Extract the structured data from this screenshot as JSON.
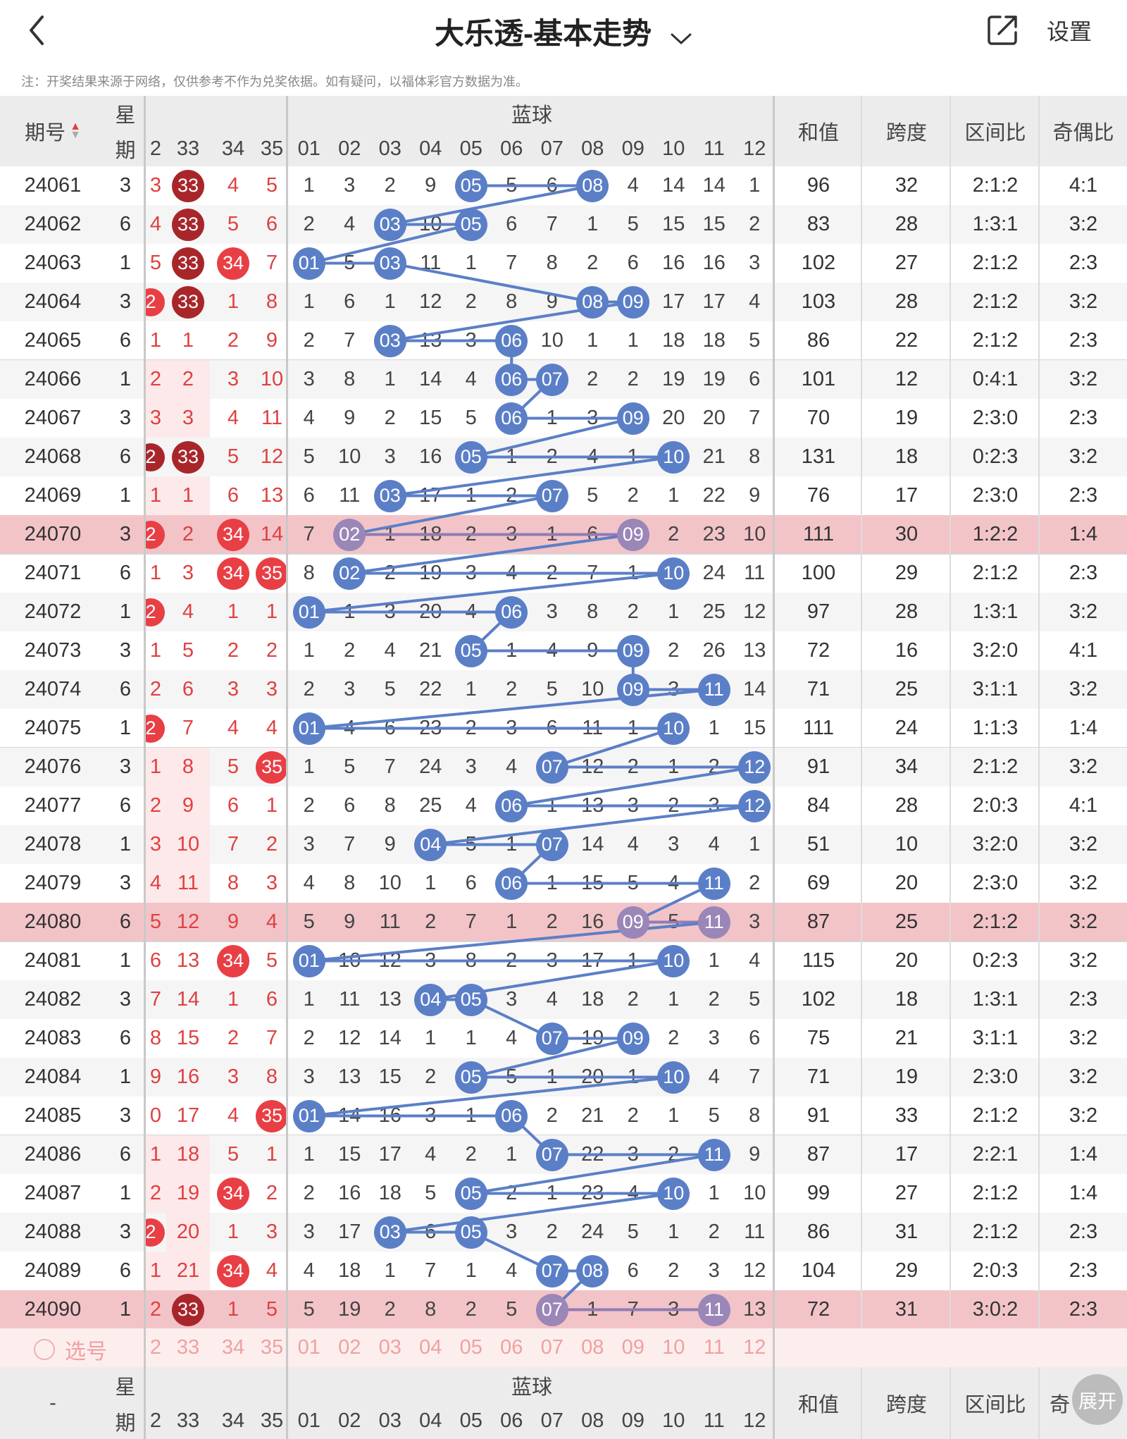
{
  "header": {
    "title": "大乐透-基本走势",
    "settings_label": "设置"
  },
  "notice": "注：开奖结果来源于网络，仅供参考不作为兑奖依据。如有疑问，以福体彩官方数据为准。",
  "table_header": {
    "issue": "期号",
    "weekday_top": "星",
    "weekday_bottom": "期",
    "blue_group": "蓝球",
    "sum": "和值",
    "span": "跨度",
    "zone_ratio": "区间比",
    "odd_even": "奇偶比",
    "red_columns": [
      "2",
      "33",
      "34",
      "35"
    ],
    "blue_columns": [
      "01",
      "02",
      "03",
      "04",
      "05",
      "06",
      "07",
      "08",
      "09",
      "10",
      "11",
      "12"
    ]
  },
  "rows": [
    {
      "issue": "24061",
      "weekday": "3",
      "red": [
        "3",
        "33",
        "4",
        "5"
      ],
      "blue": [
        "1",
        "3",
        "2",
        "9",
        "05",
        "5",
        "6",
        "08",
        "4",
        "14",
        "14",
        "1"
      ],
      "sum": "96",
      "span": "32",
      "zone": "2:1:2",
      "oe": "4:1"
    },
    {
      "issue": "24062",
      "weekday": "6",
      "red": [
        "4",
        "33",
        "5",
        "6"
      ],
      "blue": [
        "2",
        "4",
        "03",
        "10",
        "05",
        "6",
        "7",
        "1",
        "5",
        "15",
        "15",
        "2"
      ],
      "sum": "83",
      "span": "28",
      "zone": "1:3:1",
      "oe": "3:2"
    },
    {
      "issue": "24063",
      "weekday": "1",
      "red": [
        "5",
        "33",
        "34",
        "7"
      ],
      "blue": [
        "01",
        "5",
        "03",
        "11",
        "1",
        "7",
        "8",
        "2",
        "6",
        "16",
        "16",
        "3"
      ],
      "sum": "102",
      "span": "27",
      "zone": "2:1:2",
      "oe": "2:3"
    },
    {
      "issue": "24064",
      "weekday": "3",
      "red": [
        "2",
        "33",
        "1",
        "8"
      ],
      "blue": [
        "1",
        "6",
        "1",
        "12",
        "2",
        "8",
        "9",
        "08",
        "09",
        "17",
        "17",
        "4"
      ],
      "sum": "103",
      "span": "28",
      "zone": "2:1:2",
      "oe": "3:2"
    },
    {
      "issue": "24065",
      "weekday": "6",
      "red": [
        "1",
        "1",
        "2",
        "9"
      ],
      "blue": [
        "2",
        "7",
        "03",
        "13",
        "3",
        "06",
        "10",
        "1",
        "1",
        "18",
        "18",
        "5"
      ],
      "sum": "86",
      "span": "22",
      "zone": "2:1:2",
      "oe": "2:3"
    },
    {
      "issue": "24066",
      "weekday": "1",
      "red": [
        "2",
        "2",
        "3",
        "10"
      ],
      "blue": [
        "3",
        "8",
        "1",
        "14",
        "4",
        "06",
        "07",
        "2",
        "2",
        "19",
        "19",
        "6"
      ],
      "sum": "101",
      "span": "12",
      "zone": "0:4:1",
      "oe": "3:2"
    },
    {
      "issue": "24067",
      "weekday": "3",
      "red": [
        "3",
        "3",
        "4",
        "11"
      ],
      "blue": [
        "4",
        "9",
        "2",
        "15",
        "5",
        "06",
        "1",
        "3",
        "09",
        "20",
        "20",
        "7"
      ],
      "sum": "70",
      "span": "19",
      "zone": "2:3:0",
      "oe": "2:3"
    },
    {
      "issue": "24068",
      "weekday": "6",
      "red": [
        "2",
        "33",
        "5",
        "12"
      ],
      "blue": [
        "5",
        "10",
        "3",
        "16",
        "05",
        "1",
        "2",
        "4",
        "1",
        "10",
        "21",
        "8"
      ],
      "sum": "131",
      "span": "18",
      "zone": "0:2:3",
      "oe": "3:2"
    },
    {
      "issue": "24069",
      "weekday": "1",
      "red": [
        "1",
        "1",
        "6",
        "13"
      ],
      "blue": [
        "6",
        "11",
        "03",
        "17",
        "1",
        "2",
        "07",
        "5",
        "2",
        "1",
        "22",
        "9"
      ],
      "sum": "76",
      "span": "17",
      "zone": "2:3:0",
      "oe": "2:3"
    },
    {
      "issue": "24070",
      "weekday": "3",
      "red": [
        "2",
        "2",
        "34",
        "14"
      ],
      "blue": [
        "7",
        "02",
        "1",
        "18",
        "2",
        "3",
        "1",
        "6",
        "09",
        "2",
        "23",
        "10"
      ],
      "sum": "111",
      "span": "30",
      "zone": "1:2:2",
      "oe": "1:4",
      "highlight": true
    },
    {
      "issue": "24071",
      "weekday": "6",
      "red": [
        "1",
        "3",
        "34",
        "35"
      ],
      "blue": [
        "8",
        "02",
        "2",
        "19",
        "3",
        "4",
        "2",
        "7",
        "1",
        "10",
        "24",
        "11"
      ],
      "sum": "100",
      "span": "29",
      "zone": "2:1:2",
      "oe": "2:3"
    },
    {
      "issue": "24072",
      "weekday": "1",
      "red": [
        "2",
        "4",
        "1",
        "1"
      ],
      "blue": [
        "01",
        "1",
        "3",
        "20",
        "4",
        "06",
        "3",
        "8",
        "2",
        "1",
        "25",
        "12"
      ],
      "sum": "97",
      "span": "28",
      "zone": "1:3:1",
      "oe": "3:2"
    },
    {
      "issue": "24073",
      "weekday": "3",
      "red": [
        "1",
        "5",
        "2",
        "2"
      ],
      "blue": [
        "1",
        "2",
        "4",
        "21",
        "05",
        "1",
        "4",
        "9",
        "09",
        "2",
        "26",
        "13"
      ],
      "sum": "72",
      "span": "16",
      "zone": "3:2:0",
      "oe": "4:1"
    },
    {
      "issue": "24074",
      "weekday": "6",
      "red": [
        "2",
        "6",
        "3",
        "3"
      ],
      "blue": [
        "2",
        "3",
        "5",
        "22",
        "1",
        "2",
        "5",
        "10",
        "09",
        "3",
        "11",
        "14"
      ],
      "sum": "71",
      "span": "25",
      "zone": "3:1:1",
      "oe": "3:2"
    },
    {
      "issue": "24075",
      "weekday": "1",
      "red": [
        "2",
        "7",
        "4",
        "4"
      ],
      "blue": [
        "01",
        "4",
        "6",
        "23",
        "2",
        "3",
        "6",
        "11",
        "1",
        "10",
        "1",
        "15"
      ],
      "sum": "111",
      "span": "24",
      "zone": "1:1:3",
      "oe": "1:4"
    },
    {
      "issue": "24076",
      "weekday": "3",
      "red": [
        "1",
        "8",
        "5",
        "35"
      ],
      "blue": [
        "1",
        "5",
        "7",
        "24",
        "3",
        "4",
        "07",
        "12",
        "2",
        "1",
        "2",
        "12"
      ],
      "sum": "91",
      "span": "34",
      "zone": "2:1:2",
      "oe": "3:2"
    },
    {
      "issue": "24077",
      "weekday": "6",
      "red": [
        "2",
        "9",
        "6",
        "1"
      ],
      "blue": [
        "2",
        "6",
        "8",
        "25",
        "4",
        "06",
        "1",
        "13",
        "3",
        "2",
        "3",
        "12"
      ],
      "sum": "84",
      "span": "28",
      "zone": "2:0:3",
      "oe": "4:1"
    },
    {
      "issue": "24078",
      "weekday": "1",
      "red": [
        "3",
        "10",
        "7",
        "2"
      ],
      "blue": [
        "3",
        "7",
        "9",
        "04",
        "5",
        "1",
        "07",
        "14",
        "4",
        "3",
        "4",
        "1"
      ],
      "sum": "51",
      "span": "10",
      "zone": "3:2:0",
      "oe": "3:2"
    },
    {
      "issue": "24079",
      "weekday": "3",
      "red": [
        "4",
        "11",
        "8",
        "3"
      ],
      "blue": [
        "4",
        "8",
        "10",
        "1",
        "6",
        "06",
        "1",
        "15",
        "5",
        "4",
        "11",
        "2"
      ],
      "sum": "69",
      "span": "20",
      "zone": "2:3:0",
      "oe": "3:2"
    },
    {
      "issue": "24080",
      "weekday": "6",
      "red": [
        "5",
        "12",
        "9",
        "4"
      ],
      "blue": [
        "5",
        "9",
        "11",
        "2",
        "7",
        "1",
        "2",
        "16",
        "09",
        "5",
        "11",
        "3"
      ],
      "sum": "87",
      "span": "25",
      "zone": "2:1:2",
      "oe": "3:2",
      "highlight": true
    },
    {
      "issue": "24081",
      "weekday": "1",
      "red": [
        "6",
        "13",
        "34",
        "5"
      ],
      "blue": [
        "01",
        "10",
        "12",
        "3",
        "8",
        "2",
        "3",
        "17",
        "1",
        "10",
        "1",
        "4"
      ],
      "sum": "115",
      "span": "20",
      "zone": "0:2:3",
      "oe": "3:2"
    },
    {
      "issue": "24082",
      "weekday": "3",
      "red": [
        "7",
        "14",
        "1",
        "6"
      ],
      "blue": [
        "1",
        "11",
        "13",
        "04",
        "05",
        "3",
        "4",
        "18",
        "2",
        "1",
        "2",
        "5"
      ],
      "sum": "102",
      "span": "18",
      "zone": "1:3:1",
      "oe": "2:3"
    },
    {
      "issue": "24083",
      "weekday": "6",
      "red": [
        "8",
        "15",
        "2",
        "7"
      ],
      "blue": [
        "2",
        "12",
        "14",
        "1",
        "1",
        "4",
        "07",
        "19",
        "09",
        "2",
        "3",
        "6"
      ],
      "sum": "75",
      "span": "21",
      "zone": "3:1:1",
      "oe": "3:2"
    },
    {
      "issue": "24084",
      "weekday": "1",
      "red": [
        "9",
        "16",
        "3",
        "8"
      ],
      "blue": [
        "3",
        "13",
        "15",
        "2",
        "05",
        "5",
        "1",
        "20",
        "1",
        "10",
        "4",
        "7"
      ],
      "sum": "71",
      "span": "19",
      "zone": "2:3:0",
      "oe": "3:2"
    },
    {
      "issue": "24085",
      "weekday": "3",
      "red": [
        "0",
        "17",
        "4",
        "35"
      ],
      "blue": [
        "01",
        "14",
        "16",
        "3",
        "1",
        "06",
        "2",
        "21",
        "2",
        "1",
        "5",
        "8"
      ],
      "sum": "91",
      "span": "33",
      "zone": "2:1:2",
      "oe": "3:2"
    },
    {
      "issue": "24086",
      "weekday": "6",
      "red": [
        "1",
        "18",
        "5",
        "1"
      ],
      "blue": [
        "1",
        "15",
        "17",
        "4",
        "2",
        "1",
        "07",
        "22",
        "3",
        "2",
        "11",
        "9"
      ],
      "sum": "87",
      "span": "17",
      "zone": "2:2:1",
      "oe": "1:4"
    },
    {
      "issue": "24087",
      "weekday": "1",
      "red": [
        "2",
        "19",
        "34",
        "2"
      ],
      "blue": [
        "2",
        "16",
        "18",
        "5",
        "05",
        "2",
        "1",
        "23",
        "4",
        "10",
        "1",
        "10"
      ],
      "sum": "99",
      "span": "27",
      "zone": "2:1:2",
      "oe": "1:4"
    },
    {
      "issue": "24088",
      "weekday": "3",
      "red": [
        "2",
        "20",
        "1",
        "3"
      ],
      "blue": [
        "3",
        "17",
        "03",
        "6",
        "05",
        "3",
        "2",
        "24",
        "5",
        "1",
        "2",
        "11"
      ],
      "sum": "86",
      "span": "31",
      "zone": "2:1:2",
      "oe": "2:3"
    },
    {
      "issue": "24089",
      "weekday": "6",
      "red": [
        "1",
        "21",
        "34",
        "4"
      ],
      "blue": [
        "4",
        "18",
        "1",
        "7",
        "1",
        "4",
        "07",
        "08",
        "6",
        "2",
        "3",
        "12"
      ],
      "sum": "104",
      "span": "29",
      "zone": "2:0:3",
      "oe": "2:3"
    },
    {
      "issue": "24090",
      "weekday": "1",
      "red": [
        "2",
        "33",
        "1",
        "5"
      ],
      "blue": [
        "5",
        "19",
        "2",
        "8",
        "2",
        "5",
        "07",
        "1",
        "7",
        "3",
        "11",
        "13"
      ],
      "sum": "72",
      "span": "31",
      "zone": "3:0:2",
      "oe": "2:3",
      "highlight": true
    }
  ],
  "blue_hits": [
    [
      5,
      8
    ],
    [
      3,
      5
    ],
    [
      1,
      3
    ],
    [
      8,
      9
    ],
    [
      3,
      6
    ],
    [
      6,
      7
    ],
    [
      6,
      9
    ],
    [
      5,
      10
    ],
    [
      3,
      7
    ],
    [
      2,
      9
    ],
    [
      2,
      10
    ],
    [
      1,
      6
    ],
    [
      5,
      9
    ],
    [
      9,
      11
    ],
    [
      1,
      10
    ],
    [
      7,
      12
    ],
    [
      6,
      12
    ],
    [
      4,
      7
    ],
    [
      6,
      11
    ],
    [
      9,
      11
    ],
    [
      1,
      10
    ],
    [
      4,
      5
    ],
    [
      7,
      9
    ],
    [
      5,
      10
    ],
    [
      1,
      6
    ],
    [
      7,
      11
    ],
    [
      5,
      10
    ],
    [
      3,
      5
    ],
    [
      7,
      8
    ],
    [
      7,
      11
    ]
  ],
  "red_balls": [
    [
      [
        1,
        "dr"
      ]
    ],
    [
      [
        1,
        "dr"
      ]
    ],
    [
      [
        1,
        "dr"
      ],
      [
        2,
        "r"
      ]
    ],
    [
      [
        0,
        "r"
      ],
      [
        1,
        "dr"
      ]
    ],
    [],
    [],
    [],
    [
      [
        0,
        "dr"
      ],
      [
        1,
        "dr"
      ]
    ],
    [],
    [
      [
        0,
        "r"
      ],
      [
        2,
        "r"
      ]
    ],
    [
      [
        2,
        "r"
      ],
      [
        3,
        "r"
      ]
    ],
    [
      [
        0,
        "r"
      ]
    ],
    [],
    [],
    [
      [
        0,
        "r"
      ]
    ],
    [
      [
        3,
        "r"
      ]
    ],
    [],
    [],
    [],
    [],
    [
      [
        2,
        "r"
      ]
    ],
    [],
    [],
    [],
    [
      [
        3,
        "r"
      ]
    ],
    [],
    [
      [
        2,
        "r"
      ]
    ],
    [
      [
        0,
        "r"
      ]
    ],
    [
      [
        2,
        "r"
      ]
    ],
    [
      [
        1,
        "dr"
      ]
    ]
  ],
  "pick_row": {
    "label": "选号",
    "red": [
      "2",
      "33",
      "34",
      "35"
    ],
    "blue": [
      "01",
      "02",
      "03",
      "04",
      "05",
      "06",
      "07",
      "08",
      "09",
      "10",
      "11",
      "12"
    ]
  },
  "footer_header": {
    "issue": "-",
    "weekday_top": "星",
    "weekday_bottom": "期",
    "blue_group": "蓝球",
    "sum": "和值",
    "span": "跨度",
    "zone_ratio": "区间比",
    "odd_even": "奇"
  },
  "expand_label": "展开",
  "colors": {
    "blue_ball": "#5b7fc7",
    "red_ball": "#e83f45",
    "dark_red_ball": "#a8262a",
    "highlight_row": "#f2c4c8",
    "red_text": "#e04040"
  }
}
